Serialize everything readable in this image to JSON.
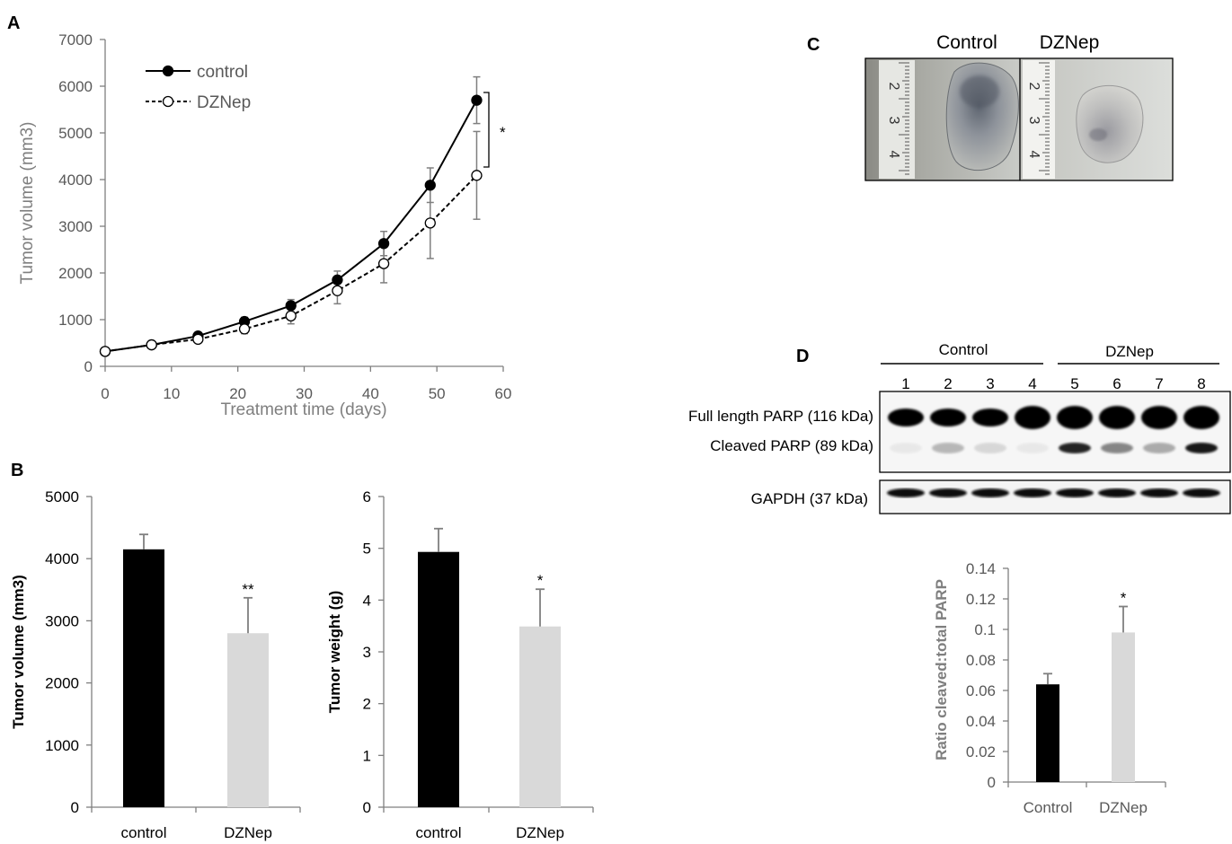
{
  "panels": {
    "A": "A",
    "B": "B",
    "C": "C",
    "D": "D"
  },
  "chart_data": [
    {
      "id": "A",
      "type": "line",
      "xlabel": "Treatment time (days)",
      "ylabel": "Tumor volume (mm3)",
      "xlim": [
        0,
        60
      ],
      "ylim": [
        0,
        7000
      ],
      "xticks": [
        0,
        10,
        20,
        30,
        40,
        50,
        60
      ],
      "yticks": [
        0,
        1000,
        2000,
        3000,
        4000,
        5000,
        6000,
        7000
      ],
      "x": [
        0,
        7,
        14,
        21,
        28,
        35,
        42,
        49,
        56
      ],
      "series": [
        {
          "name": "control",
          "marker": "filled-circle",
          "line": "solid",
          "values": [
            320,
            460,
            650,
            960,
            1300,
            1850,
            2630,
            3880,
            5700
          ],
          "errors": [
            0,
            30,
            60,
            90,
            130,
            190,
            260,
            370,
            500
          ]
        },
        {
          "name": "DZNep",
          "marker": "open-circle",
          "line": "dashed",
          "values": [
            320,
            460,
            580,
            800,
            1080,
            1620,
            2200,
            3070,
            4090
          ],
          "errors": [
            0,
            30,
            60,
            100,
            170,
            280,
            410,
            760,
            940
          ]
        }
      ],
      "legend_position": "top-left",
      "annotation": "*"
    },
    {
      "id": "B-left",
      "type": "bar",
      "categories": [
        "control",
        "DZNep"
      ],
      "values": [
        4150,
        2800
      ],
      "errors": [
        240,
        570
      ],
      "colors": [
        "#000000",
        "#d9d9d9"
      ],
      "ylabel": "Tumor volume (mm3)",
      "ylim": [
        0,
        5000
      ],
      "yticks": [
        0,
        1000,
        2000,
        3000,
        4000,
        5000
      ],
      "annotations": [
        "",
        "**"
      ]
    },
    {
      "id": "B-right",
      "type": "bar",
      "categories": [
        "control",
        "DZNep"
      ],
      "values": [
        4.93,
        3.49
      ],
      "errors": [
        0.45,
        0.72
      ],
      "colors": [
        "#000000",
        "#d9d9d9"
      ],
      "ylabel": "Tumor weight (g)",
      "ylim": [
        0,
        6
      ],
      "yticks": [
        0,
        1,
        2,
        3,
        4,
        5,
        6
      ],
      "annotations": [
        "",
        "*"
      ]
    },
    {
      "id": "D-bar",
      "type": "bar",
      "categories": [
        "Control",
        "DZNep"
      ],
      "values": [
        0.064,
        0.098
      ],
      "errors": [
        0.007,
        0.017
      ],
      "colors": [
        "#000000",
        "#d9d9d9"
      ],
      "ylabel": "Ratio cleaved:total PARP",
      "ylim": [
        0,
        0.14
      ],
      "yticks": [
        "0",
        "0.02",
        "0.04",
        "0.06",
        "0.08",
        "0.1",
        "0.12",
        "0.14"
      ],
      "annotations": [
        "",
        "*"
      ]
    }
  ],
  "photo": {
    "labels": [
      "Control",
      "DZNep"
    ],
    "ruler_marks": [
      "2",
      "3",
      "4"
    ]
  },
  "blot": {
    "groups": [
      "Control",
      "DZNep"
    ],
    "lanes": [
      "1",
      "2",
      "3",
      "4",
      "5",
      "6",
      "7",
      "8"
    ],
    "row_labels": [
      "Full length PARP (116 kDa)",
      "Cleaved PARP (89 kDa)",
      "GAPDH (37 kDa)"
    ],
    "cleaved_intensity": [
      0.05,
      0.25,
      0.12,
      0.05,
      0.85,
      0.45,
      0.3,
      0.9
    ]
  },
  "colors": {
    "axis": "#7f7f7f",
    "control": "#000000",
    "dznep": "#d9d9d9",
    "errorbar": "#7f7f7f"
  }
}
